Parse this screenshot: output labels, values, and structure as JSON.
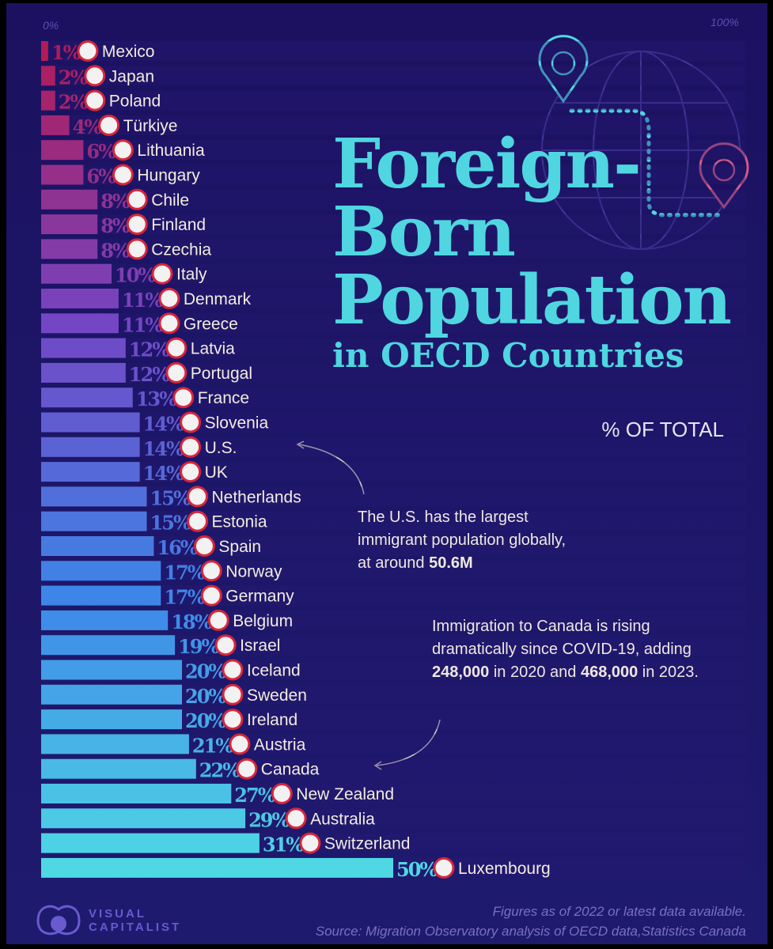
{
  "chart_data": {
    "type": "bar",
    "orientation": "horizontal",
    "title": "Foreign-Born Population in OECD Countries",
    "title_lines": [
      "Foreign-",
      "Born",
      "Population",
      "in OECD Countries"
    ],
    "subtitle": "% OF TOTAL",
    "axis_min_label": "0%",
    "axis_max_label": "100%",
    "xlim": [
      0,
      100
    ],
    "categories": [
      "Mexico",
      "Japan",
      "Poland",
      "Türkiye",
      "Lithuania",
      "Hungary",
      "Chile",
      "Finland",
      "Czechia",
      "Italy",
      "Denmark",
      "Greece",
      "Latvia",
      "Portugal",
      "France",
      "Slovenia",
      "U.S.",
      "UK",
      "Netherlands",
      "Estonia",
      "Spain",
      "Norway",
      "Germany",
      "Belgium",
      "Israel",
      "Iceland",
      "Sweden",
      "Ireland",
      "Austria",
      "Canada",
      "New Zealand",
      "Australia",
      "Switzerland",
      "Luxembourg"
    ],
    "values": [
      1,
      2,
      2,
      4,
      6,
      6,
      8,
      8,
      8,
      10,
      11,
      11,
      12,
      12,
      13,
      14,
      14,
      14,
      15,
      15,
      16,
      17,
      17,
      18,
      19,
      20,
      20,
      20,
      21,
      22,
      27,
      29,
      31,
      50
    ],
    "value_labels": [
      "1%",
      "2%",
      "2%",
      "4%",
      "6%",
      "6%",
      "8%",
      "8%",
      "8%",
      "10%",
      "11%",
      "11%",
      "12%",
      "12%",
      "13%",
      "14%",
      "14%",
      "14%",
      "15%",
      "15%",
      "16%",
      "17%",
      "17%",
      "18%",
      "19%",
      "20%",
      "20%",
      "20%",
      "21%",
      "22%",
      "27%",
      "29%",
      "31%",
      "50%"
    ],
    "color_start": "#b01c58",
    "color_mid": "#7446c4",
    "color_mid2": "#3d86e8",
    "color_end": "#4fd8e4"
  },
  "annotations": {
    "us": {
      "pre": "The U.S. has the largest immigrant population globally, at around ",
      "bold": "50.6M"
    },
    "canada": {
      "pre": "Immigration to Canada is rising dramatically since COVID-19, adding ",
      "bold1": "248,000",
      "mid": " in 2020 and ",
      "bold2": "468,000",
      "post": " in 2023."
    }
  },
  "footer": {
    "note": "Figures as of 2022 or latest data available.",
    "source": "Source: Migration Observatory analysis of OECD data,Statistics Canada"
  },
  "logo": {
    "line1": "VISUAL",
    "line2": "CAPITALIST"
  }
}
